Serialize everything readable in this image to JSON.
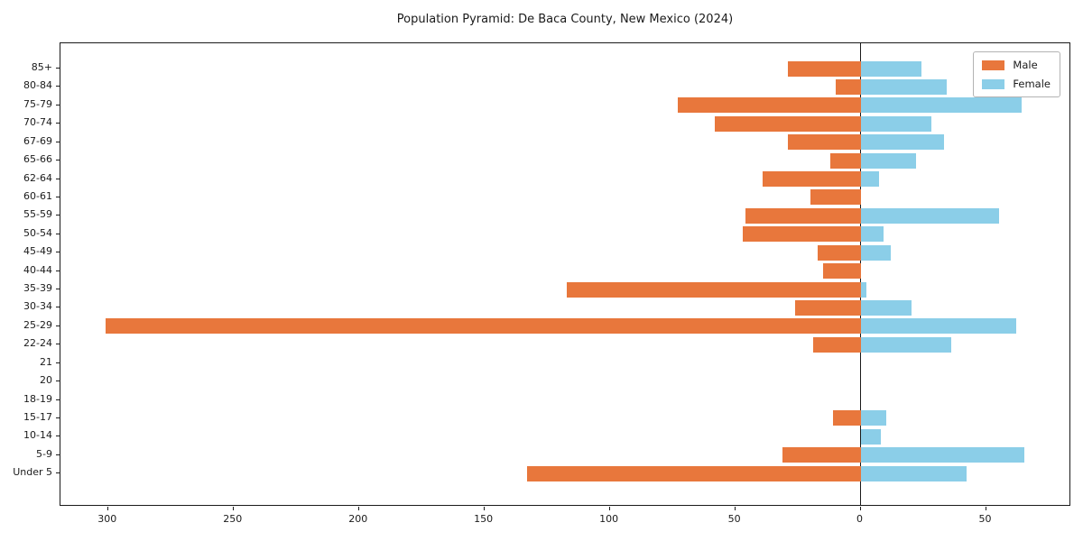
{
  "title": "Population Pyramid: De Baca County, New Mexico (2024)",
  "legend": {
    "male_label": "Male",
    "female_label": "Female",
    "position": "upper right"
  },
  "colors": {
    "male": "#e8773c",
    "female": "#8bcee8",
    "axis": "#1a1a1a",
    "background": "#ffffff"
  },
  "chart_data": {
    "type": "bar",
    "subtype": "population-pyramid",
    "orientation": "horizontal",
    "title": "Population Pyramid: De Baca County, New Mexico (2024)",
    "xlabel": "",
    "ylabel": "",
    "grid": false,
    "legend_position": "upper right",
    "categories": [
      "85+",
      "80-84",
      "75-79",
      "70-74",
      "67-69",
      "65-66",
      "62-64",
      "60-61",
      "55-59",
      "50-54",
      "45-49",
      "40-44",
      "35-39",
      "30-34",
      "25-29",
      "22-24",
      "21",
      "20",
      "18-19",
      "15-17",
      "10-14",
      "5-9",
      "Under 5"
    ],
    "series": [
      {
        "name": "Male",
        "direction": "left",
        "values": [
          29,
          10,
          73,
          58,
          29,
          12,
          39,
          20,
          46,
          47,
          17,
          15,
          117,
          26,
          301,
          19,
          0,
          0,
          0,
          11,
          0,
          31,
          133
        ]
      },
      {
        "name": "Female",
        "direction": "right",
        "values": [
          24,
          34,
          64,
          28,
          33,
          22,
          7,
          0,
          55,
          9,
          12,
          0,
          2,
          20,
          62,
          36,
          0,
          0,
          0,
          10,
          8,
          65,
          42
        ]
      }
    ],
    "xlim": [
      -319,
      84
    ],
    "xticks": [
      {
        "value": -300,
        "label": "300"
      },
      {
        "value": -250,
        "label": "250"
      },
      {
        "value": -200,
        "label": "200"
      },
      {
        "value": -150,
        "label": "150"
      },
      {
        "value": -100,
        "label": "100"
      },
      {
        "value": -50,
        "label": "50"
      },
      {
        "value": 0,
        "label": "0"
      },
      {
        "value": 50,
        "label": "50"
      }
    ]
  }
}
